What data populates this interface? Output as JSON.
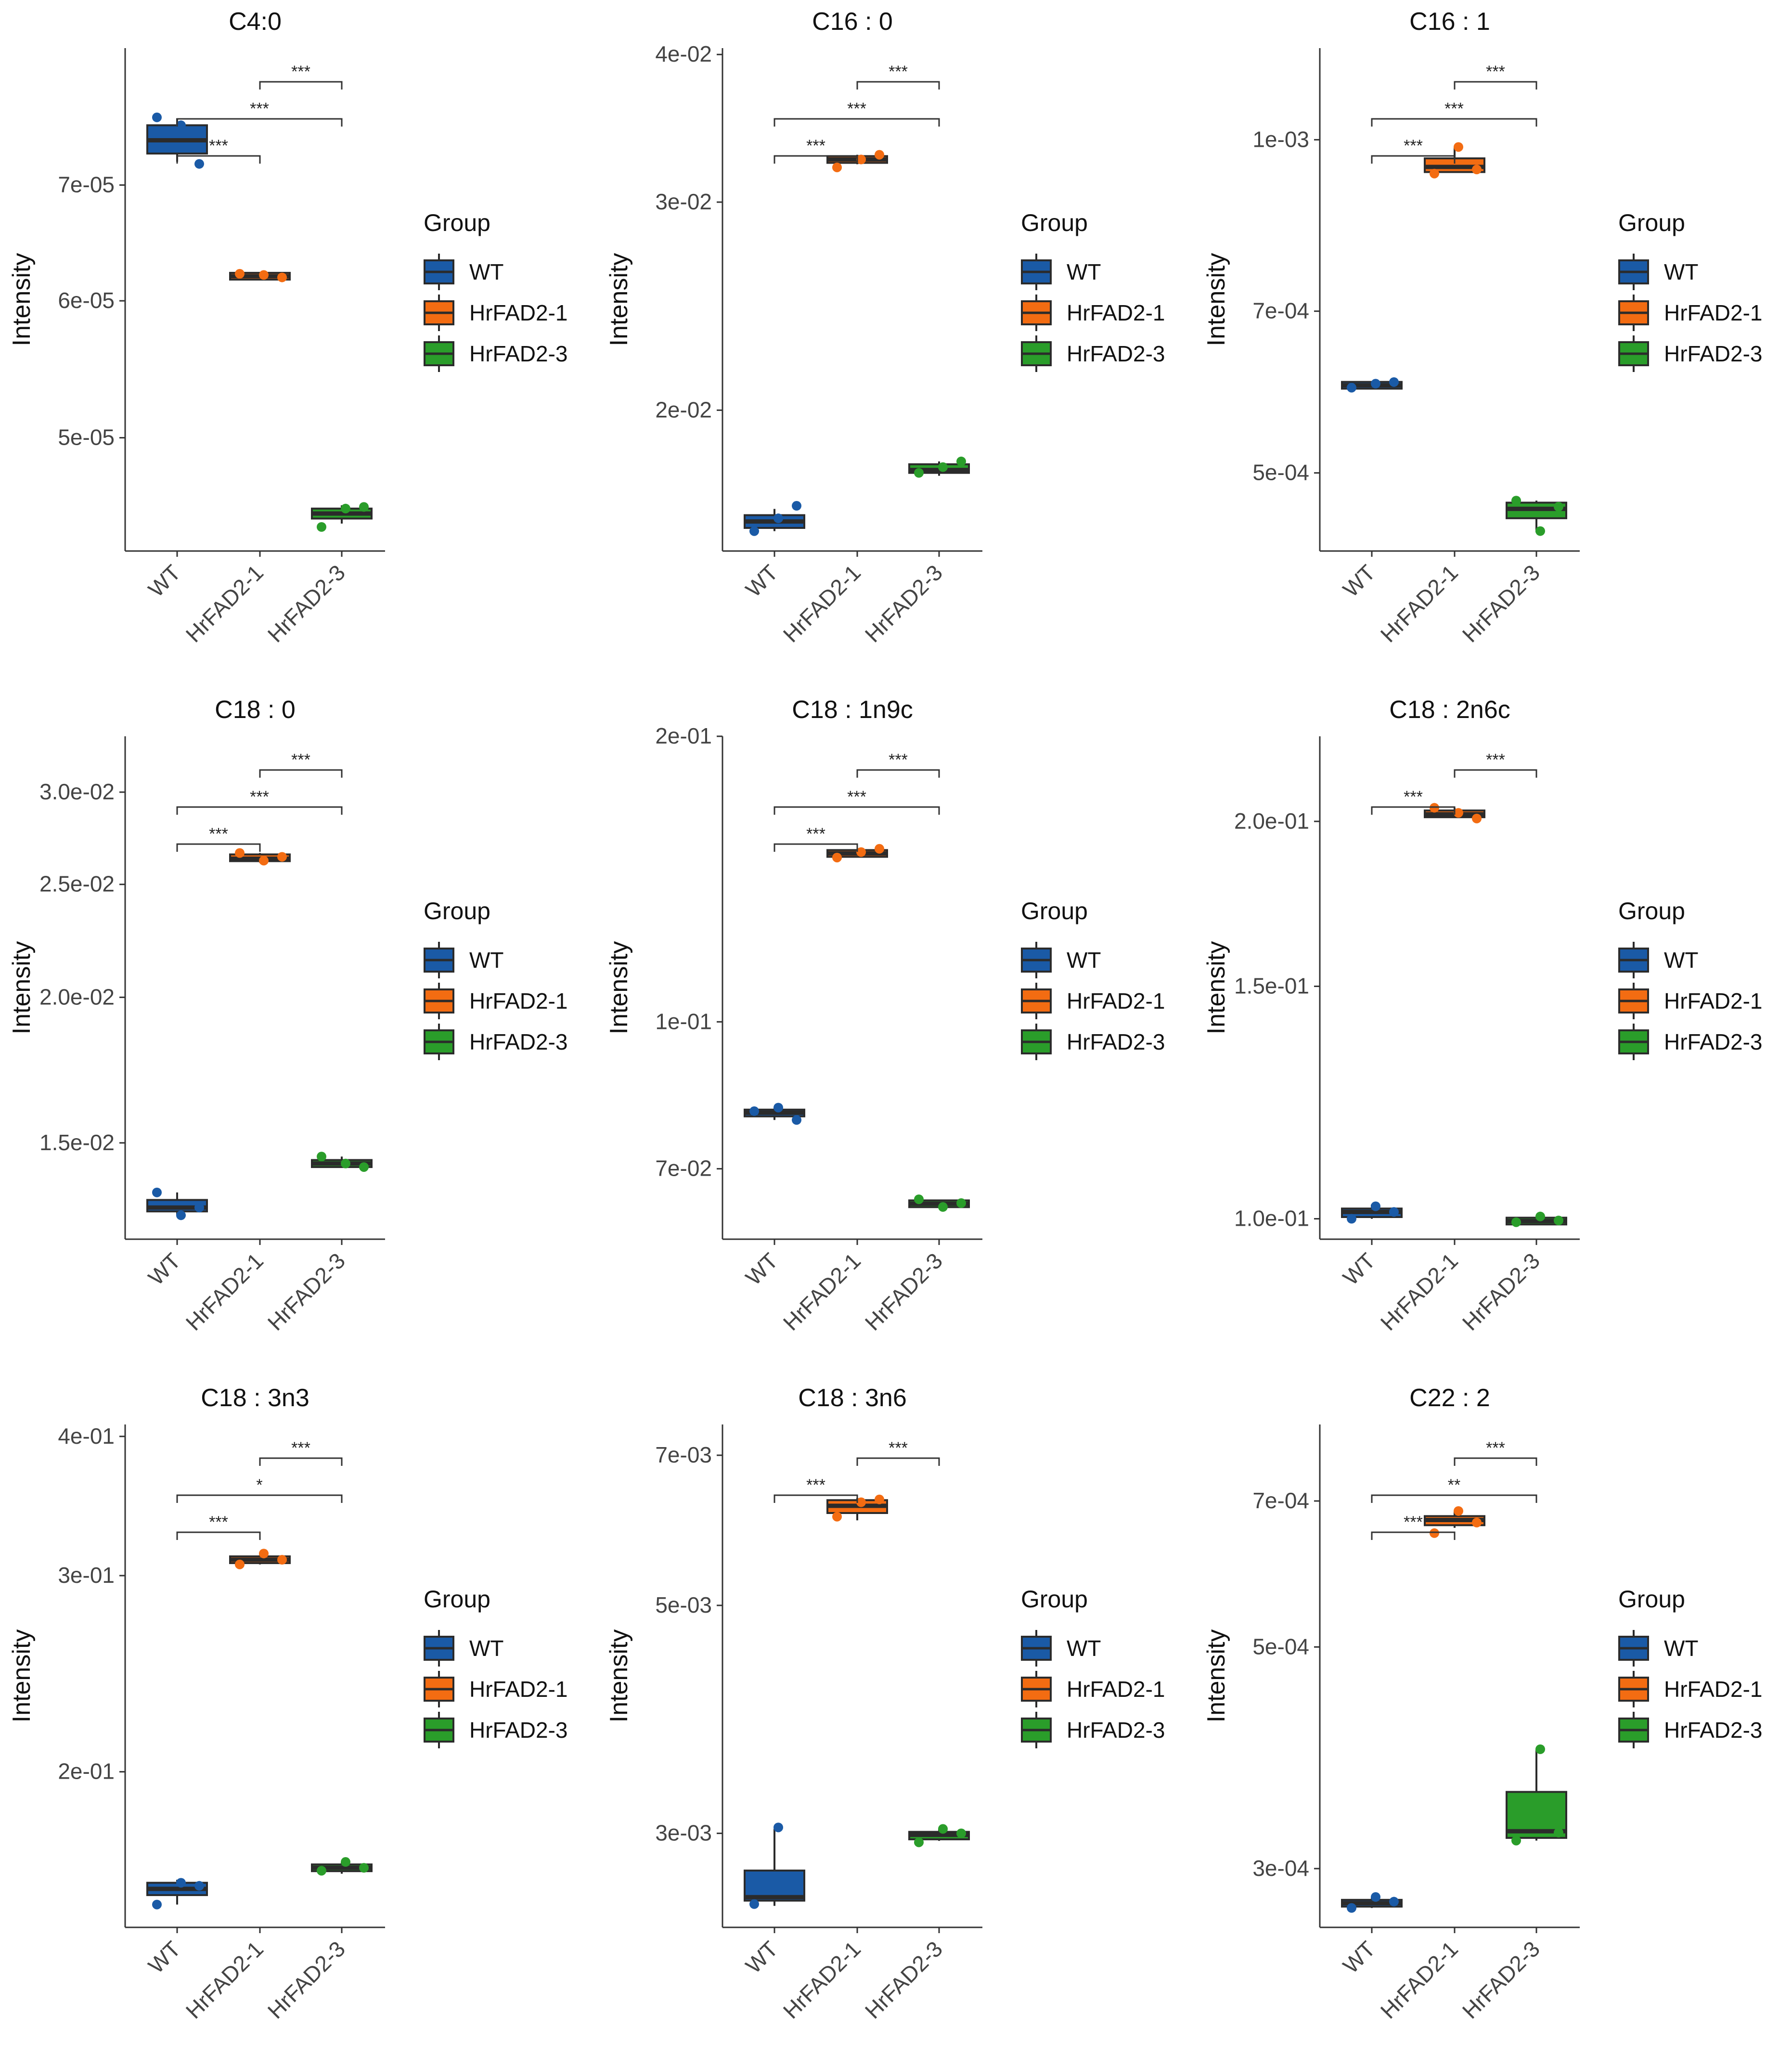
{
  "legend": {
    "title": "Group",
    "items": [
      {
        "label": "WT",
        "color": "#1a5aa6"
      },
      {
        "label": "HrFAD2-1",
        "color": "#f36c12"
      },
      {
        "label": "HrFAD2-3",
        "color": "#2a9d2a"
      }
    ]
  },
  "ylabel": "Intensity",
  "categories": [
    "WT",
    "HrFAD2-1",
    "HrFAD2-3"
  ],
  "colors": {
    "box_line": "#2b2b2b",
    "axis": "#333333",
    "WT": "#1a5aa6",
    "HrFAD2-1": "#f36c12",
    "HrFAD2-3": "#2a9d2a"
  },
  "chart_data": [
    {
      "type": "box",
      "title": "C4:0",
      "ylabel": "Intensity",
      "ylim": [
        4.3e-05,
        8.4e-05
      ],
      "yticks": [
        5e-05,
        6e-05,
        7e-05
      ],
      "ytick_labels": [
        "5e-05",
        "6e-05",
        "7e-05"
      ],
      "groups": [
        {
          "name": "WT",
          "q1": 7.3e-05,
          "median": 7.43e-05,
          "q3": 7.58e-05,
          "wmin": 7.22e-05,
          "wmax": 7.65e-05,
          "points": [
            7.66e-05,
            7.58e-05,
            7.2e-05
          ]
        },
        {
          "name": "HrFAD2-1",
          "q1": 6.18e-05,
          "median": 6.2e-05,
          "q3": 6.22e-05,
          "wmin": 6.18e-05,
          "wmax": 6.22e-05,
          "points": [
            6.22e-05,
            6.21e-05,
            6.19e-05
          ]
        },
        {
          "name": "HrFAD2-3",
          "q1": 4.49e-05,
          "median": 4.52e-05,
          "q3": 4.55e-05,
          "wmin": 4.46e-05,
          "wmax": 4.57e-05,
          "points": [
            4.44e-05,
            4.55e-05,
            4.56e-05
          ]
        }
      ],
      "comparisons": [
        {
          "from": 0,
          "to": 1,
          "label": "***",
          "level": 0
        },
        {
          "from": 0,
          "to": 2,
          "label": "***",
          "level": 1
        },
        {
          "from": 1,
          "to": 2,
          "label": "***",
          "level": 2
        }
      ]
    },
    {
      "type": "box",
      "title": "C16 : 0",
      "ylabel": "Intensity",
      "ylim": [
        0.0152,
        0.0405
      ],
      "yticks": [
        0.02,
        0.03,
        0.04
      ],
      "ytick_labels": [
        "2e-02",
        "3e-02",
        "4e-02"
      ],
      "groups": [
        {
          "name": "WT",
          "q1": 0.0159,
          "median": 0.0161,
          "q3": 0.0163,
          "wmin": 0.0158,
          "wmax": 0.0165,
          "points": [
            0.0158,
            0.0162,
            0.0166
          ]
        },
        {
          "name": "HrFAD2-1",
          "q1": 0.0324,
          "median": 0.0326,
          "q3": 0.0328,
          "wmin": 0.0323,
          "wmax": 0.0329,
          "points": [
            0.0321,
            0.0326,
            0.0329
          ]
        },
        {
          "name": "HrFAD2-3",
          "q1": 0.0177,
          "median": 0.0178,
          "q3": 0.018,
          "wmin": 0.0176,
          "wmax": 0.0181,
          "points": [
            0.0177,
            0.0179,
            0.0181
          ]
        }
      ],
      "comparisons": [
        {
          "from": 0,
          "to": 1,
          "label": "***",
          "level": 0
        },
        {
          "from": 0,
          "to": 2,
          "label": "***",
          "level": 1
        },
        {
          "from": 1,
          "to": 2,
          "label": "***",
          "level": 2
        }
      ]
    },
    {
      "type": "box",
      "title": "C16 : 1",
      "ylabel": "Intensity",
      "ylim": [
        0.000425,
        0.00121
      ],
      "yticks": [
        0.0005,
        0.0007,
        0.001
      ],
      "ytick_labels": [
        "5e-04",
        "7e-04",
        "1e-03"
      ],
      "groups": [
        {
          "name": "WT",
          "q1": 0.000598,
          "median": 0.0006,
          "q3": 0.000602,
          "wmin": 0.000596,
          "wmax": 0.000604,
          "points": [
            0.000597,
            0.000602,
            0.000604
          ]
        },
        {
          "name": "HrFAD2-1",
          "q1": 0.000935,
          "median": 0.000945,
          "q3": 0.000962,
          "wmin": 0.000935,
          "wmax": 0.000985,
          "points": [
            0.000932,
            0.000985,
            0.00094
          ]
        },
        {
          "name": "HrFAD2-3",
          "q1": 0.000455,
          "median": 0.000464,
          "q3": 0.00047,
          "wmin": 0.000442,
          "wmax": 0.000472,
          "points": [
            0.000472,
            0.000443,
            0.000466
          ]
        }
      ],
      "comparisons": [
        {
          "from": 0,
          "to": 1,
          "label": "***",
          "level": 0
        },
        {
          "from": 0,
          "to": 2,
          "label": "***",
          "level": 1
        },
        {
          "from": 1,
          "to": 2,
          "label": "***",
          "level": 2
        }
      ]
    },
    {
      "type": "box",
      "title": "C18 : 0",
      "ylabel": "Intensity",
      "ylim": [
        0.0124,
        0.0335
      ],
      "yticks": [
        0.015,
        0.02,
        0.025,
        0.03
      ],
      "ytick_labels": [
        "1.5e-02",
        "2.0e-02",
        "2.5e-02",
        "3.0e-02"
      ],
      "groups": [
        {
          "name": "WT",
          "q1": 0.0131,
          "median": 0.0132,
          "q3": 0.0134,
          "wmin": 0.013,
          "wmax": 0.0136,
          "points": [
            0.0136,
            0.013,
            0.0132
          ]
        },
        {
          "name": "HrFAD2-1",
          "q1": 0.0262,
          "median": 0.0263,
          "q3": 0.0265,
          "wmin": 0.0261,
          "wmax": 0.0266,
          "points": [
            0.0266,
            0.0262,
            0.0264
          ]
        },
        {
          "name": "HrFAD2-3",
          "q1": 0.0143,
          "median": 0.0144,
          "q3": 0.0145,
          "wmin": 0.0143,
          "wmax": 0.0146,
          "points": [
            0.0146,
            0.0144,
            0.0143
          ]
        }
      ],
      "comparisons": [
        {
          "from": 0,
          "to": 1,
          "label": "***",
          "level": 0
        },
        {
          "from": 0,
          "to": 2,
          "label": "***",
          "level": 1
        },
        {
          "from": 1,
          "to": 2,
          "label": "***",
          "level": 2
        }
      ]
    },
    {
      "type": "box",
      "title": "C18 : 1n9c",
      "ylabel": "Intensity",
      "ylim": [
        0.059,
        0.2
      ],
      "yticks": [
        0.07,
        0.1,
        0.2
      ],
      "ytick_labels": [
        "7e-02",
        "1e-01",
        "2e-01"
      ],
      "groups": [
        {
          "name": "WT",
          "q1": 0.0795,
          "median": 0.0802,
          "q3": 0.0808,
          "wmin": 0.0788,
          "wmax": 0.0812,
          "points": [
            0.0805,
            0.0812,
            0.0788
          ]
        },
        {
          "name": "HrFAD2-1",
          "q1": 0.1495,
          "median": 0.1505,
          "q3": 0.1515,
          "wmin": 0.149,
          "wmax": 0.152,
          "points": [
            0.149,
            0.151,
            0.1522
          ]
        },
        {
          "name": "HrFAD2-3",
          "q1": 0.064,
          "median": 0.0643,
          "q3": 0.0646,
          "wmin": 0.0638,
          "wmax": 0.0648,
          "points": [
            0.065,
            0.0638,
            0.0644
          ]
        }
      ],
      "comparisons": [
        {
          "from": 0,
          "to": 1,
          "label": "***",
          "level": 0
        },
        {
          "from": 0,
          "to": 2,
          "label": "***",
          "level": 1
        },
        {
          "from": 1,
          "to": 2,
          "label": "***",
          "level": 2
        }
      ]
    },
    {
      "type": "box",
      "title": "C18 : 2n6c",
      "ylabel": "Intensity",
      "ylim": [
        0.0965,
        0.232
      ],
      "yticks": [
        0.1,
        0.15,
        0.2
      ],
      "ytick_labels": [
        "1.0e-01",
        "1.5e-01",
        "2.0e-01"
      ],
      "groups": [
        {
          "name": "WT",
          "q1": 0.1003,
          "median": 0.1012,
          "q3": 0.1018,
          "wmin": 0.1,
          "wmax": 0.1025,
          "points": [
            0.1,
            0.1022,
            0.1012
          ]
        },
        {
          "name": "HrFAD2-1",
          "q1": 0.2015,
          "median": 0.2025,
          "q3": 0.2038,
          "wmin": 0.2012,
          "wmax": 0.2048,
          "points": [
            0.2048,
            0.203,
            0.201
          ]
        },
        {
          "name": "HrFAD2-3",
          "q1": 0.0993,
          "median": 0.0996,
          "q3": 0.0999,
          "wmin": 0.0992,
          "wmax": 0.1001,
          "points": [
            0.0994,
            0.1004,
            0.0997
          ]
        }
      ],
      "comparisons": [
        {
          "from": 0,
          "to": 1,
          "label": "***",
          "level": 0
        },
        {
          "from": 1,
          "to": 2,
          "label": "***",
          "level": 1
        }
      ]
    },
    {
      "type": "box",
      "title": "C18 : 3n3",
      "ylabel": "Intensity",
      "ylim": [
        0.145,
        0.41
      ],
      "yticks": [
        0.2,
        0.3,
        0.4
      ],
      "ytick_labels": [
        "2e-01",
        "3e-01",
        "4e-01"
      ],
      "groups": [
        {
          "name": "WT",
          "q1": 0.155,
          "median": 0.157,
          "q3": 0.159,
          "wmin": 0.152,
          "wmax": 0.16,
          "points": [
            0.152,
            0.159,
            0.158
          ]
        },
        {
          "name": "HrFAD2-1",
          "q1": 0.309,
          "median": 0.31,
          "q3": 0.311,
          "wmin": 0.307,
          "wmax": 0.313,
          "points": [
            0.307,
            0.314,
            0.31
          ]
        },
        {
          "name": "HrFAD2-3",
          "q1": 0.163,
          "median": 0.164,
          "q3": 0.165,
          "wmin": 0.162,
          "wmax": 0.166,
          "points": [
            0.163,
            0.166,
            0.164
          ]
        }
      ],
      "comparisons": [
        {
          "from": 0,
          "to": 1,
          "label": "***",
          "level": 0
        },
        {
          "from": 0,
          "to": 2,
          "label": "*",
          "level": 1
        },
        {
          "from": 1,
          "to": 2,
          "label": "***",
          "level": 2
        }
      ]
    },
    {
      "type": "box",
      "title": "C18 : 3n6",
      "ylabel": "Intensity",
      "ylim": [
        0.00243,
        0.0075
      ],
      "yticks": [
        0.003,
        0.005,
        0.007
      ],
      "ytick_labels": [
        "3e-03",
        "5e-03",
        "7e-03"
      ],
      "groups": [
        {
          "name": "WT",
          "q1": 0.00258,
          "median": 0.0026,
          "q3": 0.00276,
          "wmin": 0.00255,
          "wmax": 0.00303,
          "points": [
            0.00256,
            0.00304
          ]
        },
        {
          "name": "HrFAD2-1",
          "q1": 0.00615,
          "median": 0.00625,
          "q3": 0.00633,
          "wmin": 0.00605,
          "wmax": 0.00636,
          "points": [
            0.0061,
            0.0063,
            0.00634
          ]
        },
        {
          "name": "HrFAD2-3",
          "q1": 0.00296,
          "median": 0.00299,
          "q3": 0.00301,
          "wmin": 0.00295,
          "wmax": 0.00303,
          "points": [
            0.00294,
            0.00303,
            0.003
          ]
        }
      ],
      "comparisons": [
        {
          "from": 0,
          "to": 1,
          "label": "***",
          "level": 0
        },
        {
          "from": 1,
          "to": 2,
          "label": "***",
          "level": 1
        }
      ]
    },
    {
      "type": "box",
      "title": "C22 : 2",
      "ylabel": "Intensity",
      "ylim": [
        0.000262,
        0.000835
      ],
      "yticks": [
        0.0003,
        0.0005,
        0.0007
      ],
      "ytick_labels": [
        "3e-04",
        "5e-04",
        "7e-04"
      ],
      "groups": [
        {
          "name": "WT",
          "q1": 0.000275,
          "median": 0.000277,
          "q3": 0.000279,
          "wmin": 0.000274,
          "wmax": 0.000281,
          "points": [
            0.000274,
            0.000281,
            0.000278
          ]
        },
        {
          "name": "HrFAD2-1",
          "q1": 0.000662,
          "median": 0.00067,
          "q3": 0.000676,
          "wmin": 0.000658,
          "wmax": 0.000684,
          "points": [
            0.00065,
            0.000684,
            0.000666
          ]
        },
        {
          "name": "HrFAD2-3",
          "q1": 0.000322,
          "median": 0.000327,
          "q3": 0.000358,
          "wmin": 0.00032,
          "wmax": 0.000395,
          "points": [
            0.00032,
            0.000395,
            0.000326
          ]
        }
      ],
      "comparisons": [
        {
          "from": 0,
          "to": 1,
          "label": "***",
          "level": 0
        },
        {
          "from": 0,
          "to": 2,
          "label": "**",
          "level": 1
        },
        {
          "from": 1,
          "to": 2,
          "label": "***",
          "level": 2
        }
      ]
    }
  ]
}
